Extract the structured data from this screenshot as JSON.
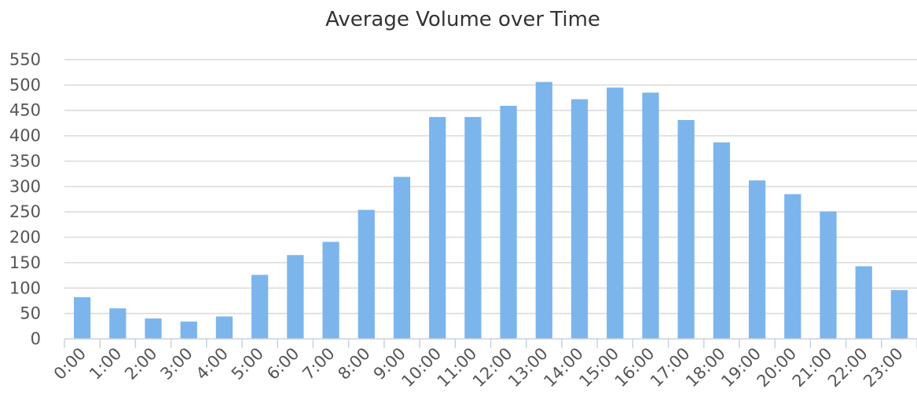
{
  "chart_data": {
    "type": "bar",
    "title": "Average Volume over Time",
    "xlabel": "",
    "ylabel": "",
    "categories": [
      "0:00",
      "1:00",
      "2:00",
      "3:00",
      "4:00",
      "5:00",
      "6:00",
      "7:00",
      "8:00",
      "9:00",
      "10:00",
      "11:00",
      "12:00",
      "13:00",
      "14:00",
      "15:00",
      "16:00",
      "17:00",
      "18:00",
      "19:00",
      "20:00",
      "21:00",
      "22:00",
      "23:00"
    ],
    "values": [
      82,
      60,
      40,
      34,
      44,
      126,
      165,
      191,
      254,
      319,
      437,
      437,
      459,
      506,
      472,
      495,
      485,
      431,
      387,
      312,
      285,
      251,
      143,
      96
    ],
    "ylim": [
      0,
      550
    ],
    "yticks": [
      0,
      50,
      100,
      150,
      200,
      250,
      300,
      350,
      400,
      450,
      500,
      550
    ],
    "grid": true,
    "legend": "none",
    "colors": {
      "bar": "#7cb5ec",
      "grid": "#d9d9d9",
      "axis": "#c8d2e0",
      "text": "#555555",
      "title": "#333333"
    }
  }
}
